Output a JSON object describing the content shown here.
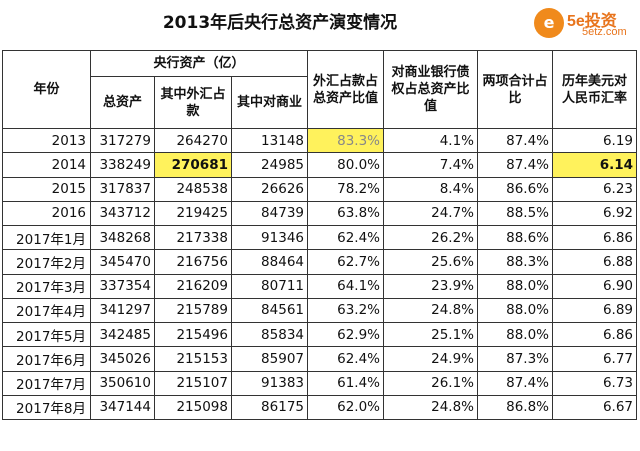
{
  "title": "2013年后央行总资产演变情况",
  "logo": {
    "mark": "e",
    "brand": "5e投资",
    "url": "5etz.com",
    "color": "#f08a1c"
  },
  "headers": {
    "year": "年份",
    "central_bank_assets": "央行资产（亿）",
    "total_assets": "总资产",
    "fx_holdings": "其中外汇占款",
    "claims_on_banks": "其中对商业",
    "fx_ratio": "外汇占款占总资产比值",
    "bank_claims_ratio": "对商业银行债权占总资产比值",
    "combined_ratio": "两项合计占比",
    "usd_cny_rate": "历年美元对人民币汇率"
  },
  "highlight_color": "#fff25c",
  "rows": [
    {
      "year": "2013",
      "total": "317279",
      "fx": "264270",
      "banks": "13148",
      "fx_ratio": "83.3%",
      "bank_ratio": "4.1%",
      "combined": "87.4%",
      "rate": "6.19"
    },
    {
      "year": "2014",
      "total": "338249",
      "fx": "270681",
      "banks": "24985",
      "fx_ratio": "80.0%",
      "bank_ratio": "7.4%",
      "combined": "87.4%",
      "rate": "6.14"
    },
    {
      "year": "2015",
      "total": "317837",
      "fx": "248538",
      "banks": "26626",
      "fx_ratio": "78.2%",
      "bank_ratio": "8.4%",
      "combined": "86.6%",
      "rate": "6.23"
    },
    {
      "year": "2016",
      "total": "343712",
      "fx": "219425",
      "banks": "84739",
      "fx_ratio": "63.8%",
      "bank_ratio": "24.7%",
      "combined": "88.5%",
      "rate": "6.92"
    },
    {
      "year": "2017年1月",
      "total": "348268",
      "fx": "217338",
      "banks": "91346",
      "fx_ratio": "62.4%",
      "bank_ratio": "26.2%",
      "combined": "88.6%",
      "rate": "6.86"
    },
    {
      "year": "2017年2月",
      "total": "345470",
      "fx": "216756",
      "banks": "88464",
      "fx_ratio": "62.7%",
      "bank_ratio": "25.6%",
      "combined": "88.3%",
      "rate": "6.88"
    },
    {
      "year": "2017年3月",
      "total": "337354",
      "fx": "216209",
      "banks": "80711",
      "fx_ratio": "64.1%",
      "bank_ratio": "23.9%",
      "combined": "88.0%",
      "rate": "6.90"
    },
    {
      "year": "2017年4月",
      "total": "341297",
      "fx": "215789",
      "banks": "84561",
      "fx_ratio": "63.2%",
      "bank_ratio": "24.8%",
      "combined": "88.0%",
      "rate": "6.89"
    },
    {
      "year": "2017年5月",
      "total": "342485",
      "fx": "215496",
      "banks": "85834",
      "fx_ratio": "62.9%",
      "bank_ratio": "25.1%",
      "combined": "88.0%",
      "rate": "6.86"
    },
    {
      "year": "2017年6月",
      "total": "345026",
      "fx": "215153",
      "banks": "85907",
      "fx_ratio": "62.4%",
      "bank_ratio": "24.9%",
      "combined": "87.3%",
      "rate": "6.77"
    },
    {
      "year": "2017年7月",
      "total": "350610",
      "fx": "215107",
      "banks": "91383",
      "fx_ratio": "61.4%",
      "bank_ratio": "26.1%",
      "combined": "87.4%",
      "rate": "6.73"
    },
    {
      "year": "2017年8月",
      "total": "347144",
      "fx": "215098",
      "banks": "86175",
      "fx_ratio": "62.0%",
      "bank_ratio": "24.8%",
      "combined": "86.8%",
      "rate": "6.67"
    }
  ]
}
